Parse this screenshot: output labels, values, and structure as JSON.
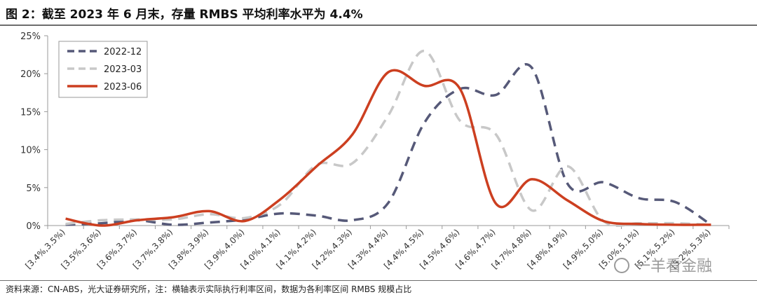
{
  "header": {
    "title": "图 2：截至 2023 年 6 月末，存量 RMBS 平均利率水平为 4.4%"
  },
  "footer": {
    "source": "资料来源：CN-ABS，光大证券研究所，注：横轴表示实际执行利率区间，数据为各利率区间 RMBS 规模占比"
  },
  "watermark": {
    "text": "一羊看金融",
    "icon": "wechat-icon"
  },
  "colors": {
    "s2022_12": "#565978",
    "s2023_03": "#c8c8c8",
    "s2023_06": "#cc3f20",
    "axis": "#9a9a9a"
  },
  "chart_data": {
    "type": "line",
    "title": "",
    "xlabel": "",
    "ylabel": "",
    "ylim": [
      0,
      25
    ],
    "yticks": [
      "0%",
      "5%",
      "10%",
      "15%",
      "20%",
      "25%"
    ],
    "grid": false,
    "legend_position": "top-left",
    "categories": [
      "[3.4%,3.5%)",
      "[3.5%,3.6%)",
      "[3.6%,3.7%)",
      "[3.7%,3.8%)",
      "[3.8%,3.9%)",
      "[3.9%,4.0%)",
      "[4.0%,4.1%)",
      "[4.1%,4.2%)",
      "[4.2%,4.3%)",
      "[4.3%,4.4%)",
      "[4.4%,4.5%)",
      "[4.5%,4.6%)",
      "[4.6%,4.7%)",
      "[4.7%,4.8%)",
      "[4.8%,4.9%)",
      "[4.9%,5.0%)",
      "[5.0%,5.1%)",
      "[5.1%,5.2%)",
      "[5.2%,5.3%)"
    ],
    "series": [
      {
        "name": "2022-12",
        "style": "dashed",
        "color": "#565978",
        "values": [
          0.1,
          0.3,
          0.7,
          0.1,
          0.4,
          0.8,
          1.6,
          1.3,
          0.7,
          3.0,
          13.5,
          18.0,
          17.2,
          20.8,
          5.5,
          5.7,
          3.6,
          3.1,
          0.1
        ]
      },
      {
        "name": "2023-03",
        "style": "dashed",
        "color": "#c8c8c8",
        "values": [
          0.2,
          0.7,
          0.8,
          0.8,
          1.5,
          1.0,
          2.8,
          8.0,
          8.2,
          14.5,
          23.0,
          13.8,
          12.0,
          2.0,
          7.8,
          0.6,
          0.3,
          0.3,
          0.1
        ]
      },
      {
        "name": "2023-06",
        "style": "solid",
        "color": "#cc3f20",
        "values": [
          0.9,
          0.0,
          0.7,
          1.1,
          1.9,
          0.6,
          3.5,
          7.8,
          12.0,
          20.2,
          18.4,
          18.0,
          2.9,
          6.1,
          3.3,
          0.6,
          0.2,
          0.1,
          0.1
        ]
      }
    ]
  }
}
